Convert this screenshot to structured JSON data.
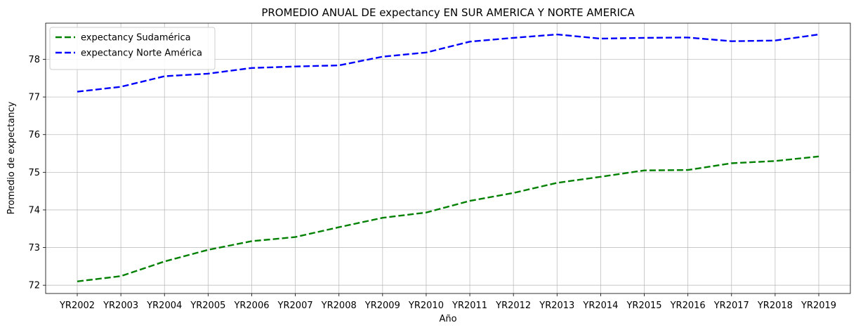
{
  "chart_data": {
    "type": "line",
    "title": "PROMEDIO ANUAL DE expectancy EN SUR AMERICA Y NORTE AMERICA",
    "xlabel": "Año",
    "ylabel": "Promedio de expectancy",
    "categories": [
      "YR2002",
      "YR2003",
      "YR2004",
      "YR2005",
      "YR2006",
      "YR2007",
      "YR2008",
      "YR2009",
      "YR2010",
      "YR2011",
      "YR2012",
      "YR2013",
      "YR2014",
      "YR2015",
      "YR2016",
      "YR2017",
      "YR2018",
      "YR2019"
    ],
    "yticks": [
      72,
      73,
      74,
      75,
      76,
      77,
      78
    ],
    "ylim": [
      71.78,
      78.96
    ],
    "grid": true,
    "legend_position": "top-left",
    "series": [
      {
        "name": "expectancy Sudamérica",
        "color": "#008000",
        "style": "dashed",
        "values": [
          72.1,
          72.24,
          72.63,
          72.94,
          73.17,
          73.28,
          73.54,
          73.79,
          73.93,
          74.24,
          74.45,
          74.72,
          74.88,
          75.05,
          75.06,
          75.24,
          75.3,
          75.42
        ]
      },
      {
        "name": "expectancy Norte América",
        "color": "#0000ff",
        "style": "dashed",
        "values": [
          77.14,
          77.27,
          77.55,
          77.62,
          77.77,
          77.81,
          77.84,
          78.07,
          78.18,
          78.47,
          78.57,
          78.66,
          78.55,
          78.57,
          78.58,
          78.48,
          78.5,
          78.66
        ]
      }
    ]
  }
}
